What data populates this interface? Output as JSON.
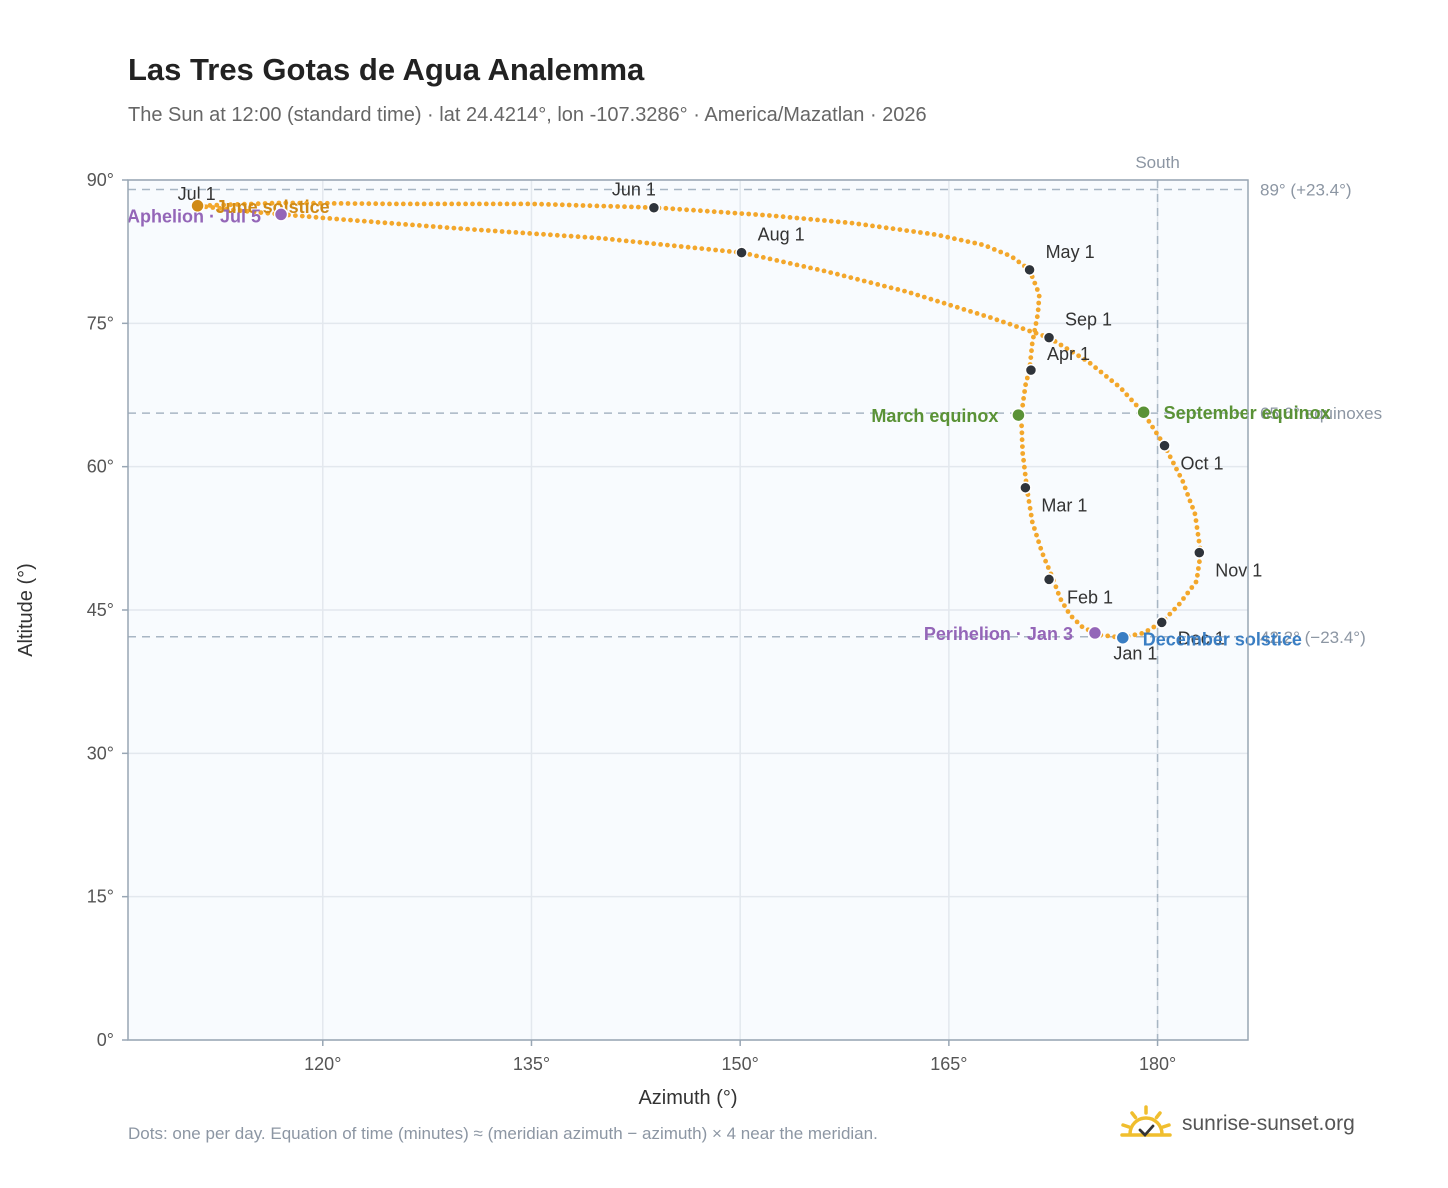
{
  "page": {
    "title": "Las Tres Gotas de Agua Analemma",
    "subtitle": "The Sun at 12:00 (standard time) · lat 24.4214°, lon -107.3286° · America/Mazatlan · 2026",
    "footnote": "Dots: one per day. Equation of time (minutes) ≈ (meridian azimuth − azimuth) × 4 near the meridian.",
    "brand": "sunrise-sunset.org"
  },
  "chart_data": {
    "type": "scatter",
    "xlabel": "Azimuth (°)",
    "ylabel": "Altitude (°)",
    "xlim": [
      106,
      186.5
    ],
    "ylim": [
      0,
      90
    ],
    "xticks": [
      120,
      135,
      150,
      165,
      180
    ],
    "xtick_labels": [
      "120°",
      "135°",
      "150°",
      "165°",
      "180°"
    ],
    "yticks": [
      0,
      15,
      30,
      45,
      60,
      75,
      90
    ],
    "ytick_labels": [
      "0°",
      "15°",
      "30°",
      "45°",
      "60°",
      "75°",
      "90°"
    ],
    "grid": true,
    "colors": {
      "path": "#f3a72b",
      "month": "#2f343b",
      "equinox": "#5a9236",
      "solstice_june": "#d08a16",
      "solstice_december": "#3a7ec3",
      "apsis": "#9466b8",
      "reference": "#a8b6c4",
      "plot_bg": "#f8fbfe",
      "frame": "#98a6b4"
    },
    "reference_lines": {
      "south": {
        "azimuth": 180,
        "label": "South"
      },
      "high": {
        "altitude": 89,
        "label": "89° (+23.4°)"
      },
      "equinoxes": {
        "altitude": 65.6,
        "label": "65.6° equinoxes"
      },
      "low": {
        "altitude": 42.2,
        "label": "42.2° (−23.4°)"
      }
    },
    "path_control_points": [
      [
        177.4,
        42.1
      ],
      [
        175.8,
        42.4
      ],
      [
        174.6,
        43.2
      ],
      [
        173.7,
        44.5
      ],
      [
        173.0,
        46.2
      ],
      [
        172.5,
        48.2
      ],
      [
        171.7,
        51.0
      ],
      [
        171.0,
        54.2
      ],
      [
        170.6,
        57.8
      ],
      [
        170.3,
        61.5
      ],
      [
        170.2,
        65.3
      ],
      [
        170.5,
        68.5
      ],
      [
        170.8,
        70.2
      ],
      [
        171.0,
        73.0
      ],
      [
        171.4,
        76.0
      ],
      [
        171.5,
        78.0
      ],
      [
        170.8,
        80.6
      ],
      [
        169.5,
        82.0
      ],
      [
        167.5,
        83.2
      ],
      [
        164.0,
        84.3
      ],
      [
        158.0,
        85.5
      ],
      [
        152.0,
        86.3
      ],
      [
        144.0,
        87.1
      ],
      [
        135.0,
        87.5
      ],
      [
        125.0,
        87.5
      ],
      [
        117.0,
        87.6
      ],
      [
        111.0,
        87.3
      ],
      [
        114.0,
        86.8
      ],
      [
        117.0,
        86.4
      ],
      [
        122.0,
        85.8
      ],
      [
        130.0,
        84.9
      ],
      [
        140.0,
        83.9
      ],
      [
        150.1,
        82.4
      ],
      [
        156.0,
        80.5
      ],
      [
        162.0,
        78.3
      ],
      [
        168.0,
        75.6
      ],
      [
        172.2,
        73.5
      ],
      [
        175.0,
        71.0
      ],
      [
        177.3,
        68.3
      ],
      [
        179.0,
        65.6
      ],
      [
        180.5,
        62.2
      ],
      [
        181.8,
        58.5
      ],
      [
        182.7,
        55.0
      ],
      [
        183.1,
        51.0
      ],
      [
        182.8,
        48.0
      ],
      [
        181.5,
        45.5
      ],
      [
        180.3,
        43.7
      ],
      [
        179.0,
        42.6
      ],
      [
        177.4,
        42.1
      ]
    ],
    "month_markers": [
      {
        "label": "Jan 1",
        "az": 177.4,
        "alt": 42.1
      },
      {
        "label": "Feb 1",
        "az": 172.2,
        "alt": 48.2
      },
      {
        "label": "Mar 1",
        "az": 170.5,
        "alt": 57.8
      },
      {
        "label": "Apr 1",
        "az": 170.9,
        "alt": 70.1
      },
      {
        "label": "May 1",
        "az": 170.8,
        "alt": 80.6
      },
      {
        "label": "Jun 1",
        "az": 143.8,
        "alt": 87.1
      },
      {
        "label": "Jul 1",
        "az": 111.0,
        "alt": 87.3
      },
      {
        "label": "Aug 1",
        "az": 150.1,
        "alt": 82.4
      },
      {
        "label": "Sep 1",
        "az": 172.2,
        "alt": 73.5
      },
      {
        "label": "Oct 1",
        "az": 180.5,
        "alt": 62.2
      },
      {
        "label": "Nov 1",
        "az": 183.0,
        "alt": 51.0
      },
      {
        "label": "Dec 1",
        "az": 180.3,
        "alt": 43.7
      }
    ],
    "events": [
      {
        "label": "March equinox",
        "az": 170.0,
        "alt": 65.4,
        "kind": "equinox"
      },
      {
        "label": "September equinox",
        "az": 179.0,
        "alt": 65.7,
        "kind": "equinox"
      },
      {
        "label": "June solstice",
        "az": 111.0,
        "alt": 87.3,
        "kind": "solstice_june"
      },
      {
        "label": "December solstice",
        "az": 177.5,
        "alt": 42.1,
        "kind": "solstice_december"
      },
      {
        "label": "Perihelion · Jan 3",
        "az": 175.5,
        "alt": 42.6,
        "kind": "apsis"
      },
      {
        "label": "Aphelion · Jul 5",
        "az": 117.0,
        "alt": 86.4,
        "kind": "apsis"
      }
    ]
  }
}
